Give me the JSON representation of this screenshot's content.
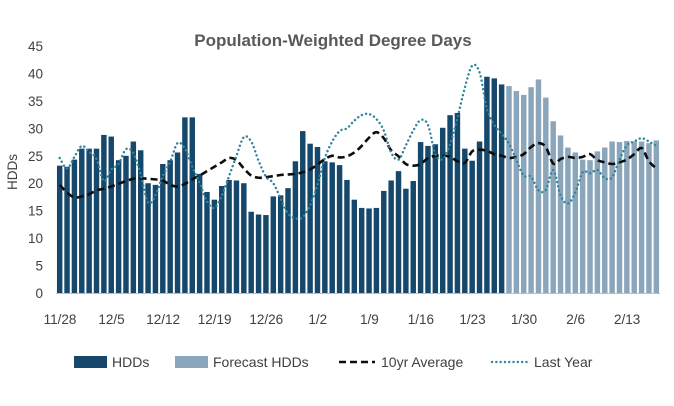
{
  "chart_data": {
    "type": "bar",
    "title": "Population-Weighted Degree Days",
    "xlabel": "",
    "ylabel": "HDDs",
    "ylim": [
      0,
      45
    ],
    "yticks": [
      0,
      5,
      10,
      15,
      20,
      25,
      30,
      35,
      40,
      45
    ],
    "grid": false,
    "legend_position": "bottom",
    "x_tick_labels": [
      "11/28",
      "12/5",
      "12/12",
      "12/19",
      "12/26",
      "1/2",
      "1/9",
      "1/16",
      "1/23",
      "1/30",
      "2/6",
      "2/13"
    ],
    "x_tick_day_index": [
      0,
      7,
      14,
      21,
      28,
      35,
      42,
      49,
      56,
      63,
      70,
      77
    ],
    "days": 82,
    "series": [
      {
        "name": "HDDs",
        "type": "bar",
        "color": "#15486b",
        "start_index": 0,
        "values": [
          23.2,
          23.0,
          24.3,
          26.3,
          26.3,
          26.3,
          28.8,
          28.5,
          24.2,
          25.0,
          27.6,
          26.0,
          20.0,
          19.7,
          23.5,
          24.2,
          25.6,
          32.0,
          32.0,
          21.7,
          18.4,
          17.0,
          19.5,
          20.6,
          20.5,
          20.0,
          14.8,
          14.3,
          14.2,
          17.6,
          17.8,
          19.1,
          24.0,
          29.5,
          27.2,
          26.6,
          24.0,
          23.8,
          23.3,
          20.6,
          17.0,
          15.5,
          15.4,
          15.5,
          18.6,
          20.5,
          22.2,
          19.0,
          20.4,
          27.5,
          26.8,
          27.1,
          30.1,
          32.4,
          32.8,
          26.3,
          24.1,
          27.6,
          39.4,
          39.1,
          38.0
        ]
      },
      {
        "name": "Forecast HDDs",
        "type": "bar",
        "color": "#8ba6bb",
        "start_index": 61,
        "values": [
          37.7,
          36.8,
          36.1,
          37.5,
          38.9,
          35.6,
          31.3,
          28.7,
          26.5,
          25.6,
          24.3,
          24.2,
          25.8,
          26.5,
          27.6,
          27.5,
          27.7,
          27.6,
          27.6,
          27.3,
          27.8
        ]
      },
      {
        "name": "10yr Average",
        "type": "line",
        "style": "dashed",
        "color": "#0d0d0d",
        "values": [
          19.7,
          18.3,
          17.4,
          17.6,
          18.0,
          18.7,
          19.0,
          19.4,
          19.9,
          20.4,
          20.8,
          20.9,
          20.8,
          20.7,
          20.5,
          19.7,
          19.4,
          19.9,
          20.7,
          21.4,
          22.2,
          23.0,
          23.8,
          24.6,
          24.2,
          22.7,
          21.4,
          21.0,
          21.1,
          21.3,
          21.5,
          21.6,
          21.7,
          22.0,
          22.5,
          23.4,
          24.4,
          25.0,
          24.7,
          24.9,
          25.6,
          26.8,
          28.3,
          29.3,
          28.2,
          26.0,
          24.9,
          23.5,
          23.2,
          23.5,
          24.6,
          25.0,
          25.0,
          24.8,
          24.0,
          23.7,
          25.8,
          26.1,
          25.9,
          25.3,
          25.0,
          24.6,
          24.8,
          25.3,
          26.6,
          27.3,
          26.6,
          23.6,
          24.4,
          24.8,
          24.6,
          24.8,
          25.3,
          24.2,
          23.8,
          23.5,
          23.8,
          24.3,
          25.3,
          26.4,
          24.0,
          22.7
        ]
      },
      {
        "name": "Last Year",
        "type": "line",
        "style": "dotted",
        "color": "#31859c",
        "values": [
          24.6,
          22.7,
          24.8,
          26.8,
          25.7,
          24.4,
          20.4,
          22.5,
          23.5,
          26.2,
          25.5,
          21.6,
          16.5,
          17.8,
          21.3,
          23.9,
          27.3,
          26.3,
          23.0,
          20.0,
          16.7,
          15.5,
          17.7,
          21.3,
          25.0,
          28.4,
          27.6,
          24.1,
          21.2,
          20.0,
          17.2,
          14.5,
          13.6,
          13.8,
          16.0,
          19.7,
          24.6,
          27.6,
          29.5,
          30.0,
          31.4,
          32.4,
          32.6,
          31.7,
          29.6,
          25.6,
          24.3,
          26.9,
          29.6,
          31.5,
          30.6,
          25.3,
          24.4,
          27.1,
          31.9,
          37.4,
          41.4,
          40.2,
          33.6,
          30.6,
          29.0,
          27.2,
          24.2,
          21.4,
          21.2,
          18.7,
          18.8,
          22.4,
          17.8,
          16.3,
          18.3,
          22.0,
          21.8,
          22.4,
          20.9,
          21.1,
          24.3,
          26.9,
          27.6,
          28.2,
          27.6,
          26.8
        ]
      }
    ]
  }
}
